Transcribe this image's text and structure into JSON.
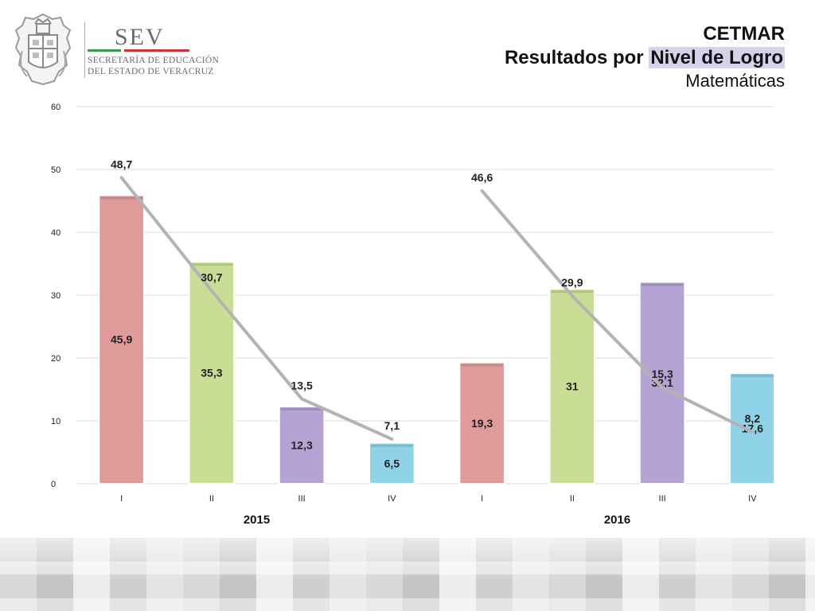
{
  "logo": {
    "name": "SEV",
    "line1": "SECRETARÍA DE EDUCACIÓN",
    "line2": "DEL ESTADO DE VERACRUZ"
  },
  "title": {
    "line1": "CETMAR",
    "line2_prefix": "Resultados por ",
    "line2_highlight": "Nivel de Logro",
    "line3": "Matemáticas"
  },
  "colors": {
    "level_I": "#e09a9a",
    "level_II": "#c9de94",
    "level_III": "#b4a3d3",
    "level_IV": "#8fd3e8",
    "line": "#b3b3b3",
    "highlight": "#d5d2ea"
  },
  "chart_data": {
    "type": "bar",
    "y_axis": {
      "min": 0,
      "max": 60,
      "ticks": [
        0,
        10,
        20,
        30,
        40,
        50,
        60
      ]
    },
    "grid": true,
    "groups": [
      {
        "label": "2015",
        "categories": [
          "I",
          "II",
          "III",
          "IV"
        ],
        "bar_values": [
          45.9,
          35.3,
          12.3,
          6.5
        ],
        "bar_labels": [
          "45,9",
          "35,3",
          "12,3",
          "6,5"
        ],
        "line_values": [
          48.7,
          30.7,
          13.5,
          7.1
        ],
        "line_labels": [
          "48,7",
          "30,7",
          "13,5",
          "7,1"
        ]
      },
      {
        "label": "2016",
        "categories": [
          "I",
          "II",
          "III",
          "IV"
        ],
        "bar_values": [
          19.3,
          31,
          32.1,
          17.6
        ],
        "bar_labels": [
          "19,3",
          "31",
          "32,1",
          "17,6"
        ],
        "line_values": [
          46.6,
          29.9,
          15.3,
          8.2
        ],
        "line_labels": [
          "46,6",
          "29,9",
          "15,3",
          "8,2"
        ]
      }
    ]
  }
}
